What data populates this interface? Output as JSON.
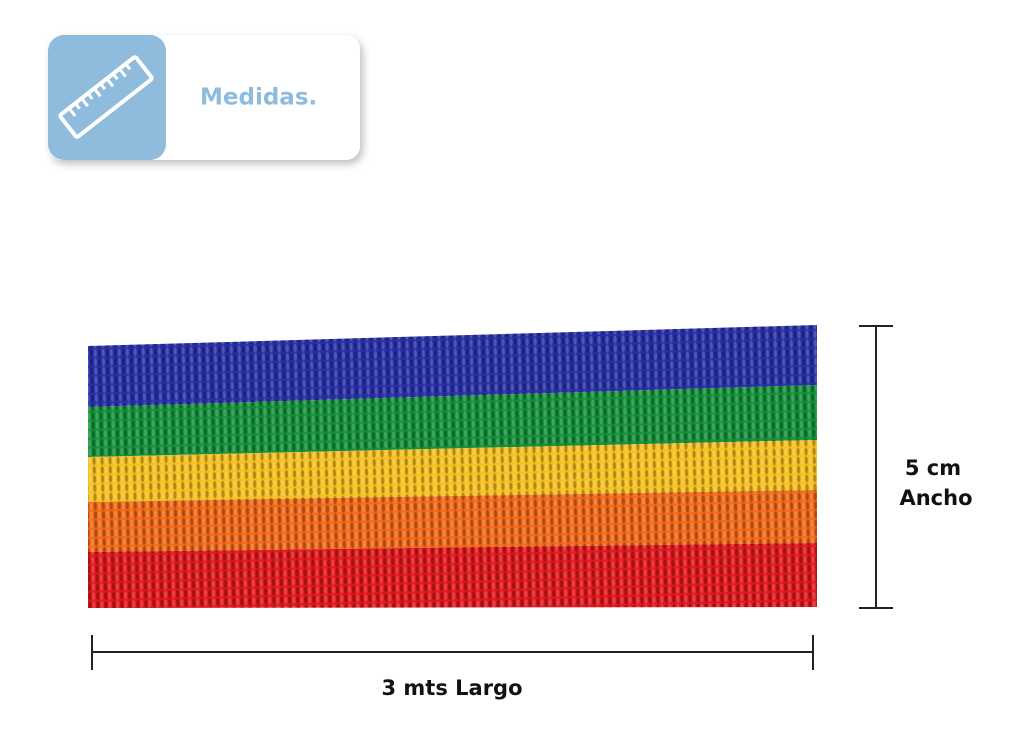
{
  "header": {
    "title": "Medidas."
  },
  "dimensions": {
    "width_value": "5 cm",
    "width_label": "Ancho",
    "length": "3 mts Largo"
  }
}
